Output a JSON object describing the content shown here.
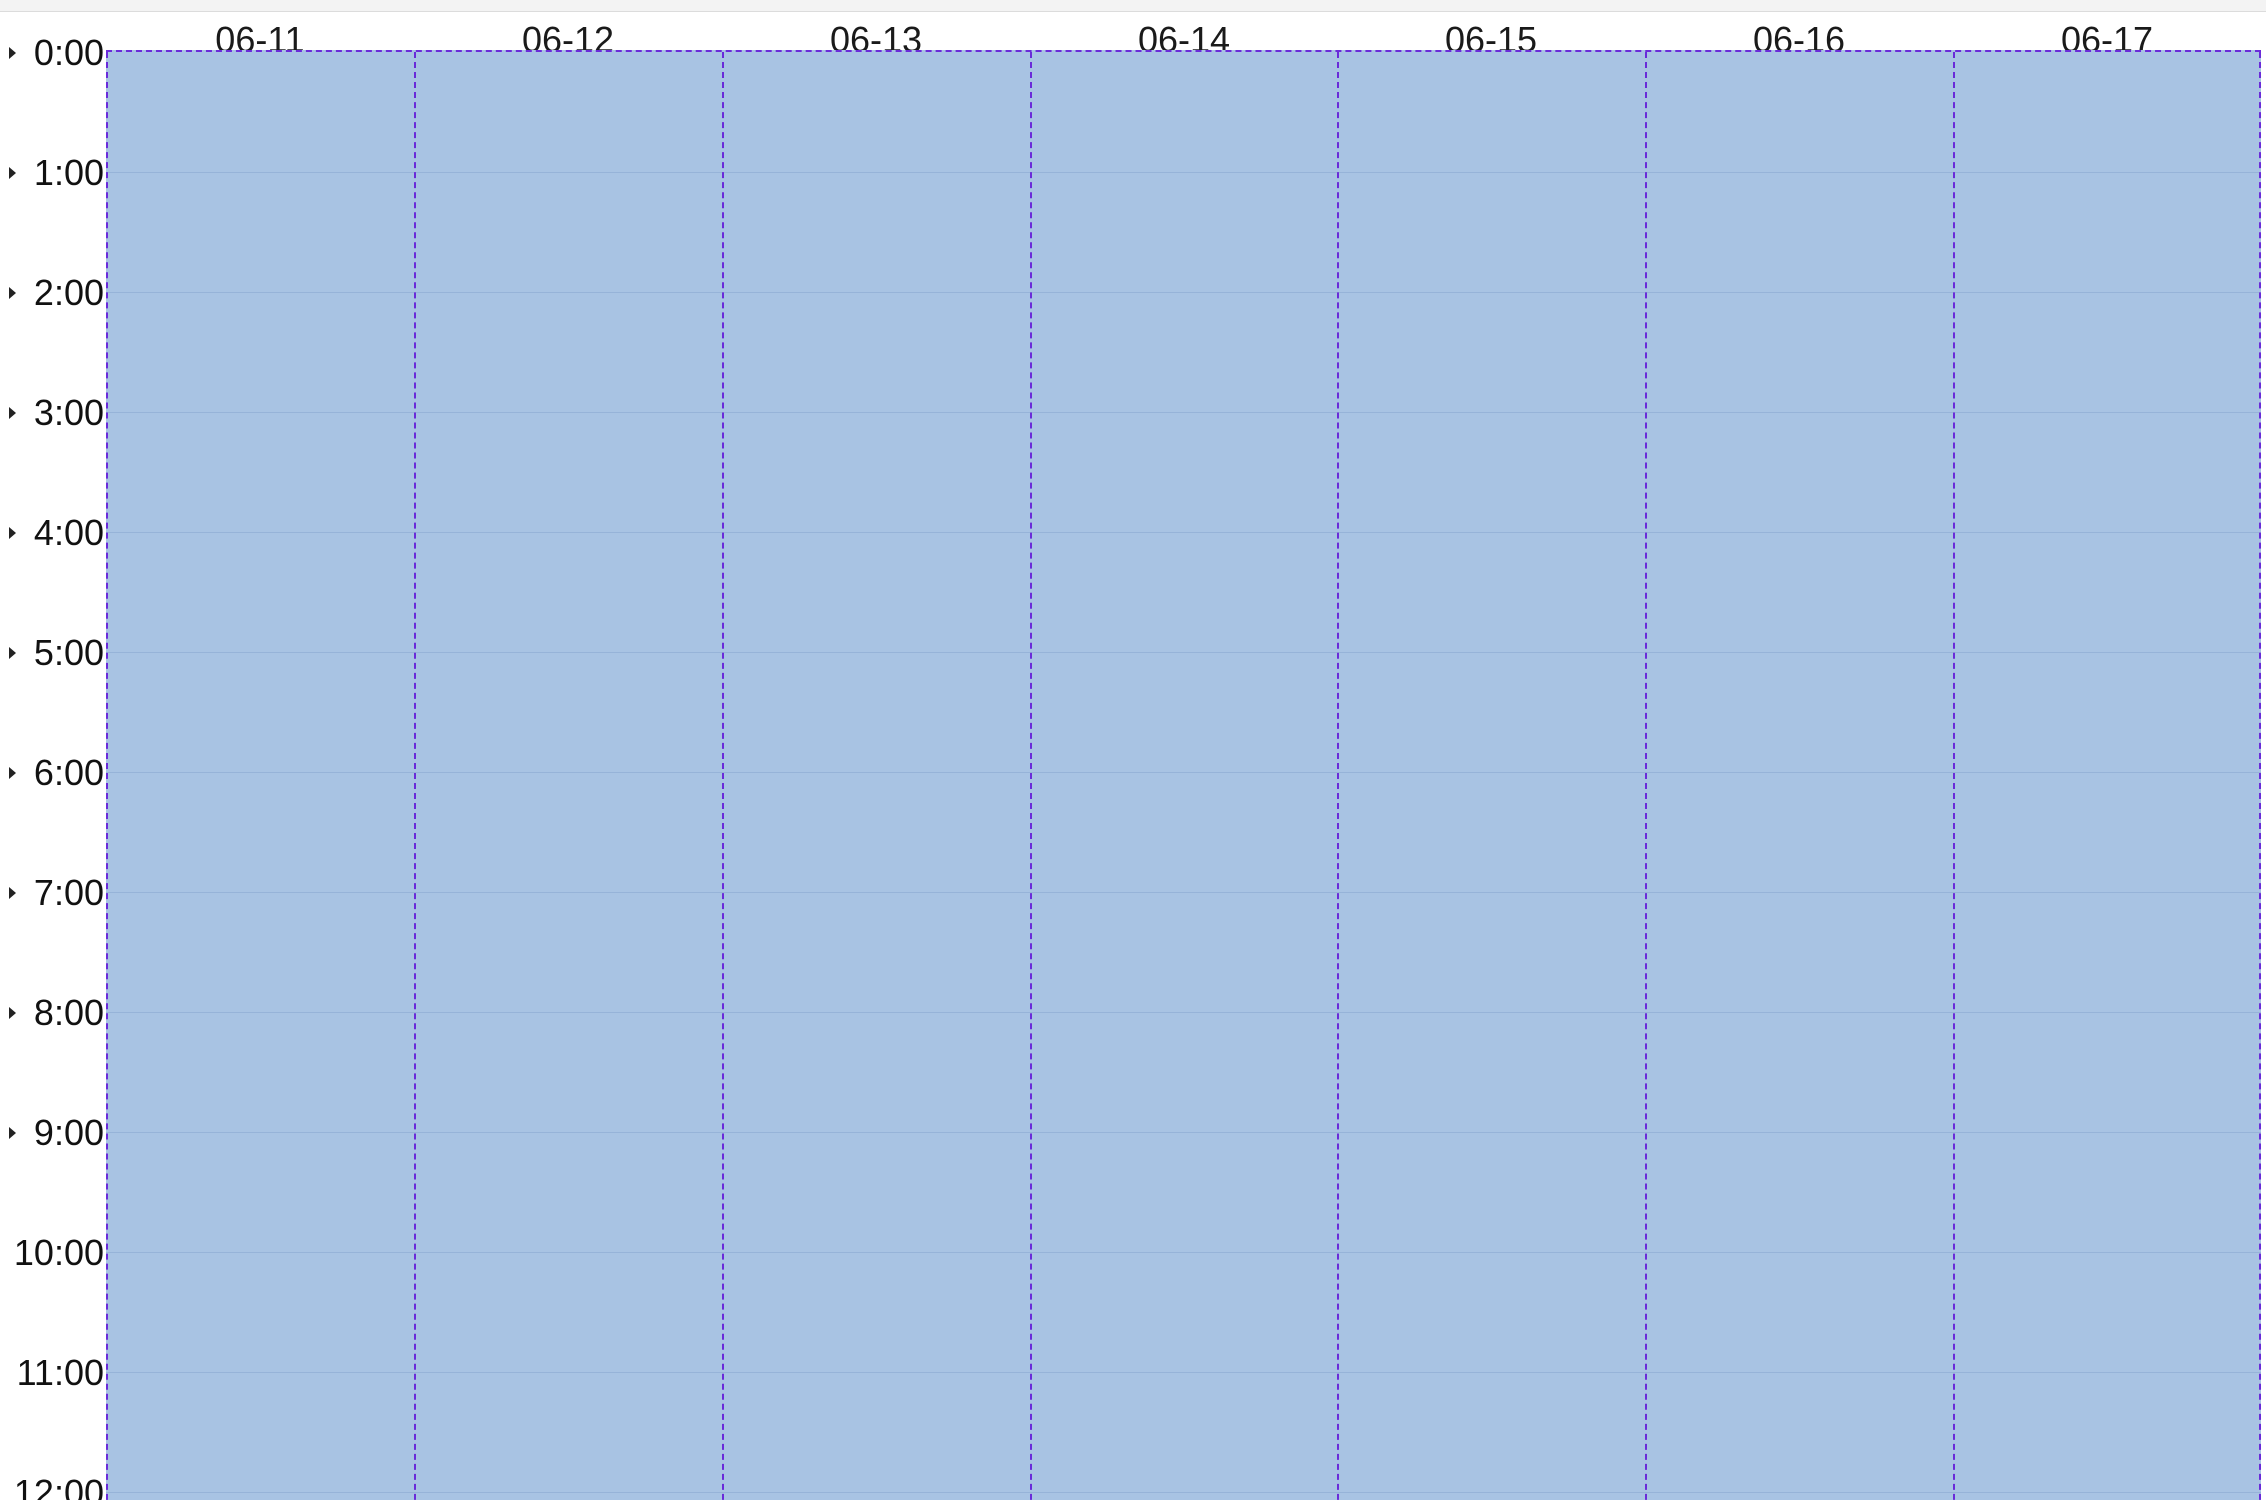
{
  "calendar": {
    "view": "week",
    "days": [
      "06-11",
      "06-12",
      "06-13",
      "06-14",
      "06-15",
      "06-16",
      "06-17"
    ],
    "hours": [
      "0:00",
      "1:00",
      "2:00",
      "3:00",
      "4:00",
      "5:00",
      "6:00",
      "7:00",
      "8:00",
      "9:00",
      "10:00",
      "11:00",
      "12:00"
    ],
    "colors": {
      "slot_fill": "#a8c3e3",
      "day_divider": "#6a2bd9",
      "hour_line": "#96b3d8"
    }
  }
}
